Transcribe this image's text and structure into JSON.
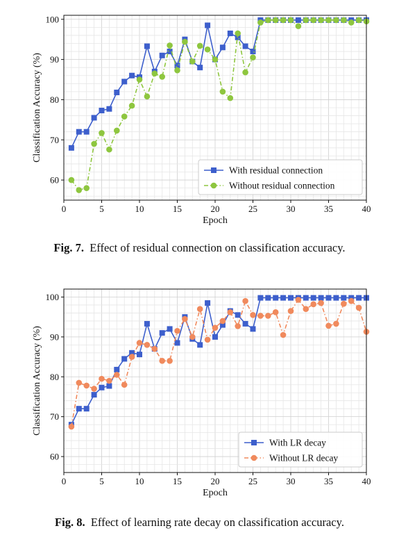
{
  "figures": [
    {
      "caption_label": "Fig. 7.",
      "caption_text": "Effect of residual connection on classification accuracy."
    },
    {
      "caption_label": "Fig. 8.",
      "caption_text": "Effect of learning rate decay on classification accuracy."
    }
  ],
  "chart_data": [
    {
      "type": "line",
      "title": "",
      "xlabel": "Epoch",
      "ylabel": "Classification Accuracy (%)",
      "xlim": [
        0,
        40
      ],
      "ylim": [
        55,
        101
      ],
      "xticks": [
        0,
        5,
        10,
        15,
        20,
        25,
        30,
        35,
        40
      ],
      "yticks": [
        60,
        70,
        80,
        90,
        100
      ],
      "grid": true,
      "legend_position": "bottom-right",
      "x": [
        1,
        2,
        3,
        4,
        5,
        6,
        7,
        8,
        9,
        10,
        11,
        12,
        13,
        14,
        15,
        16,
        17,
        18,
        19,
        20,
        21,
        22,
        23,
        24,
        25,
        26,
        27,
        28,
        29,
        30,
        31,
        32,
        33,
        34,
        35,
        36,
        37,
        38,
        39,
        40
      ],
      "series": [
        {
          "name": "With residual connection",
          "color": "#3d5fcc",
          "marker": "square",
          "line_style": "solid",
          "values": [
            68,
            72,
            72,
            75.5,
            77.3,
            77.7,
            81.8,
            84.5,
            86,
            85.6,
            93.3,
            87,
            91,
            92,
            88.5,
            95,
            89.5,
            88,
            98.5,
            90,
            93,
            96.5,
            95.5,
            93.3,
            92,
            99.8,
            99.8,
            99.8,
            99.8,
            99.8,
            99.8,
            99.8,
            99.8,
            99.8,
            99.8,
            99.8,
            99.8,
            99.8,
            99.8,
            99.8
          ]
        },
        {
          "name": "Without residual connection",
          "color": "#8ec63f",
          "marker": "circle",
          "line_style": "dashdot",
          "values": [
            60,
            57.5,
            58,
            69,
            71.7,
            67.6,
            72.3,
            75.8,
            78.5,
            85,
            80.8,
            86.5,
            85.7,
            93.5,
            87.3,
            94.4,
            89.5,
            93.4,
            92.5,
            90,
            82,
            80.4,
            96.5,
            86.8,
            90.5,
            99.2,
            99.8,
            99.8,
            99.8,
            99.8,
            98.3,
            99.8,
            99.8,
            99.8,
            99.8,
            99.8,
            99.8,
            99.2,
            99.8,
            99.5
          ]
        }
      ]
    },
    {
      "type": "line",
      "title": "",
      "xlabel": "Epoch",
      "ylabel": "Classification Accuracy (%)",
      "xlim": [
        0,
        40
      ],
      "ylim": [
        56,
        102
      ],
      "xticks": [
        0,
        5,
        10,
        15,
        20,
        25,
        30,
        35,
        40
      ],
      "yticks": [
        60,
        70,
        80,
        90,
        100
      ],
      "grid": true,
      "legend_position": "bottom-right",
      "x": [
        1,
        2,
        3,
        4,
        5,
        6,
        7,
        8,
        9,
        10,
        11,
        12,
        13,
        14,
        15,
        16,
        17,
        18,
        19,
        20,
        21,
        22,
        23,
        24,
        25,
        26,
        27,
        28,
        29,
        30,
        31,
        32,
        33,
        34,
        35,
        36,
        37,
        38,
        39,
        40
      ],
      "series": [
        {
          "name": "With LR decay",
          "color": "#3d5fcc",
          "marker": "square",
          "line_style": "solid",
          "values": [
            68,
            72,
            72,
            75.5,
            77.3,
            77.7,
            81.8,
            84.5,
            86,
            85.6,
            93.3,
            87,
            91,
            92,
            88.5,
            95,
            89.5,
            88,
            98.5,
            90,
            93,
            96.5,
            95.5,
            93.3,
            92,
            99.8,
            99.8,
            99.8,
            99.8,
            99.8,
            99.8,
            99.8,
            99.8,
            99.8,
            99.8,
            99.8,
            99.8,
            99.8,
            99.8,
            99.8
          ]
        },
        {
          "name": "Without LR decay",
          "color": "#f08a5d",
          "marker": "circle",
          "line_style": "dashdot",
          "values": [
            67.5,
            78.5,
            77.8,
            77,
            79.5,
            79,
            80.5,
            78,
            85,
            88.5,
            88,
            87,
            84,
            84,
            91.5,
            94.5,
            90,
            97,
            89.3,
            92.3,
            94,
            96.2,
            92.7,
            99,
            95.5,
            95.3,
            95.3,
            96.2,
            90.5,
            96.5,
            99.3,
            97,
            98.2,
            98.5,
            92.8,
            93.3,
            98.3,
            99,
            97.3,
            91.3
          ]
        }
      ]
    }
  ]
}
